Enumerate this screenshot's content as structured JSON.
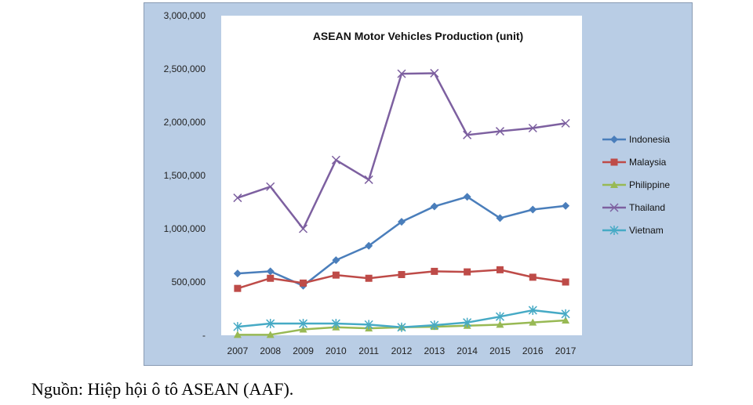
{
  "chart_data": {
    "type": "line",
    "title": "ASEAN Motor Vehicles Production (unit)",
    "xlabel": "",
    "ylabel": "",
    "x": [
      "2007",
      "2008",
      "2009",
      "2010",
      "2011",
      "2012",
      "2013",
      "2014",
      "2015",
      "2016",
      "2017"
    ],
    "ylim": [
      0,
      3000000
    ],
    "yticks": [
      0,
      500000,
      1000000,
      1500000,
      2000000,
      2500000,
      3000000
    ],
    "ytick_labels": [
      "-",
      "500,000",
      "1,000,000",
      "1,500,000",
      "2,000,000",
      "2,500,000",
      "3,000,000"
    ],
    "grid": false,
    "legend_position": "right",
    "series": [
      {
        "name": "Indonesia",
        "color": "#4a7ebb",
        "marker": "diamond",
        "values": [
          580000,
          600000,
          465000,
          705000,
          840000,
          1065000,
          1210000,
          1300000,
          1100000,
          1180000,
          1215000
        ]
      },
      {
        "name": "Malaysia",
        "color": "#be4b48",
        "marker": "square",
        "values": [
          440000,
          535000,
          490000,
          565000,
          535000,
          570000,
          600000,
          595000,
          615000,
          545000,
          500000
        ]
      },
      {
        "name": "Philippine",
        "color": "#98b954",
        "marker": "triangle",
        "values": [
          5000,
          5000,
          55000,
          75000,
          65000,
          75000,
          80000,
          90000,
          100000,
          120000,
          140000
        ]
      },
      {
        "name": "Thailand",
        "color": "#7d60a0",
        "marker": "x",
        "values": [
          1290000,
          1395000,
          1000000,
          1645000,
          1460000,
          2455000,
          2460000,
          1880000,
          1915000,
          1945000,
          1990000
        ]
      },
      {
        "name": "Vietnam",
        "color": "#46aac5",
        "marker": "asterisk",
        "values": [
          80000,
          110000,
          110000,
          110000,
          100000,
          75000,
          95000,
          120000,
          175000,
          235000,
          200000
        ]
      }
    ]
  },
  "caption": "Nguồn: Hiệp hội ô tô ASEAN (AAF)."
}
